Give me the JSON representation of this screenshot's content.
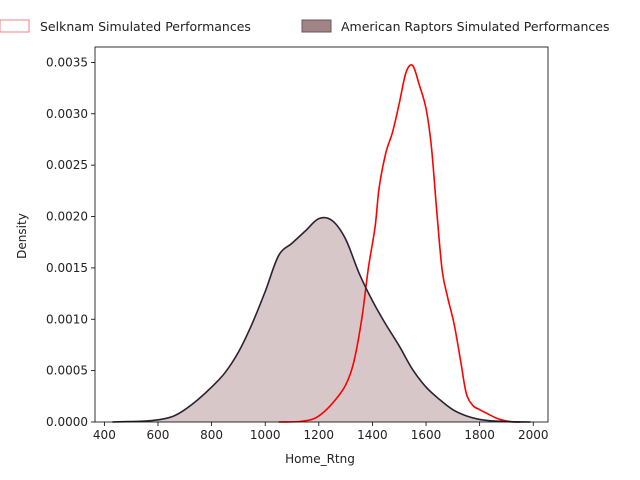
{
  "chart_data": {
    "type": "area",
    "xlabel": "Home_Rtng",
    "ylabel": "Density",
    "xlim": [
      365,
      2055
    ],
    "ylim": [
      0,
      0.00365
    ],
    "x_ticks": [
      400,
      600,
      800,
      1000,
      1200,
      1400,
      1600,
      1800,
      2000
    ],
    "y_ticks": [
      0.0,
      0.0005,
      0.001,
      0.0015,
      0.002,
      0.0025,
      0.003,
      0.0035
    ],
    "x_tick_labels": [
      "400",
      "600",
      "800",
      "1000",
      "1200",
      "1400",
      "1600",
      "1800",
      "2000"
    ],
    "y_tick_labels": [
      "0.0000",
      "0.0005",
      "0.0010",
      "0.0015",
      "0.0020",
      "0.0025",
      "0.0030",
      "0.0035"
    ],
    "legend_position": "top",
    "series": [
      {
        "name": "Selknam Simulated Performances",
        "color": "#ff0000",
        "fill": "none",
        "points": [
          [
            1050,
            0.0
          ],
          [
            1130,
            5e-06
          ],
          [
            1180,
            3e-05
          ],
          [
            1220,
            0.0001
          ],
          [
            1260,
            0.00021
          ],
          [
            1300,
            0.00036
          ],
          [
            1330,
            0.00058
          ],
          [
            1360,
            0.001
          ],
          [
            1385,
            0.0015
          ],
          [
            1410,
            0.0019
          ],
          [
            1425,
            0.00228
          ],
          [
            1450,
            0.00262
          ],
          [
            1475,
            0.00282
          ],
          [
            1500,
            0.0031
          ],
          [
            1525,
            0.0034
          ],
          [
            1550,
            0.00347
          ],
          [
            1575,
            0.00328
          ],
          [
            1600,
            0.00305
          ],
          [
            1620,
            0.00268
          ],
          [
            1640,
            0.00205
          ],
          [
            1660,
            0.00148
          ],
          [
            1680,
            0.00122
          ],
          [
            1705,
            0.00095
          ],
          [
            1730,
            0.00058
          ],
          [
            1750,
            0.00028
          ],
          [
            1775,
            0.00016
          ],
          [
            1800,
            0.00012
          ],
          [
            1830,
            8e-05
          ],
          [
            1860,
            4e-05
          ],
          [
            1890,
            1.5e-05
          ],
          [
            1920,
            3e-06
          ],
          [
            1950,
            0.0
          ]
        ]
      },
      {
        "name": "American Raptors Simulated Performances",
        "color": "#2a2233",
        "fill": "#5e1f22",
        "points": [
          [
            430,
            0.0
          ],
          [
            500,
            5e-06
          ],
          [
            560,
            1e-05
          ],
          [
            620,
            3e-05
          ],
          [
            660,
            6e-05
          ],
          [
            700,
            0.00012
          ],
          [
            750,
            0.00022
          ],
          [
            800,
            0.00034
          ],
          [
            850,
            0.00048
          ],
          [
            900,
            0.00068
          ],
          [
            950,
            0.00095
          ],
          [
            1000,
            0.00127
          ],
          [
            1050,
            0.00162
          ],
          [
            1100,
            0.00174
          ],
          [
            1150,
            0.00186
          ],
          [
            1200,
            0.00198
          ],
          [
            1250,
            0.00196
          ],
          [
            1300,
            0.00178
          ],
          [
            1350,
            0.00145
          ],
          [
            1400,
            0.00118
          ],
          [
            1450,
            0.00095
          ],
          [
            1500,
            0.00074
          ],
          [
            1550,
            0.00051
          ],
          [
            1600,
            0.00034
          ],
          [
            1650,
            0.00022
          ],
          [
            1700,
            0.00012
          ],
          [
            1750,
            6e-05
          ],
          [
            1800,
            2.5e-05
          ],
          [
            1850,
            1e-05
          ],
          [
            1900,
            4e-06
          ],
          [
            1950,
            1e-06
          ],
          [
            1990,
            0.0
          ]
        ]
      }
    ]
  }
}
